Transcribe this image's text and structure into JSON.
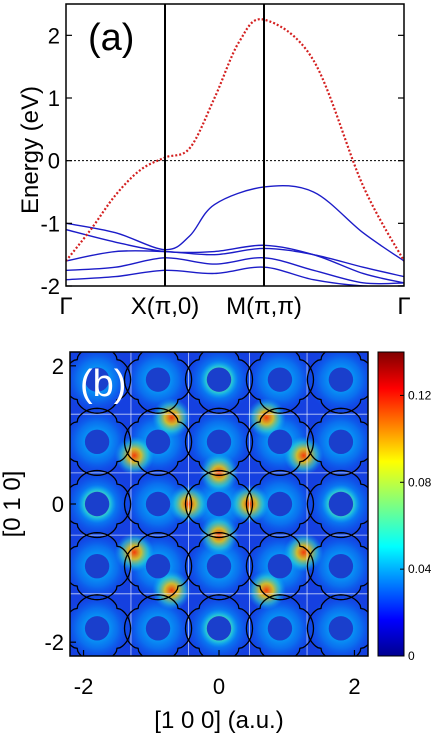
{
  "chart_data": [
    {
      "panel": "(a)",
      "type": "line",
      "ylabel": "Energy (eV)",
      "ylim": [
        -2,
        2.5
      ],
      "yticks": [
        "-2",
        "-1",
        "0",
        "1",
        "2"
      ],
      "xticks": [
        "Γ",
        "X(π,0)",
        "M(π,π)",
        "Γ"
      ],
      "k_path": [
        0,
        1,
        2,
        3.414
      ],
      "fermi_level": 0,
      "highlighted_band": {
        "color": "#d42020",
        "style": "dotted",
        "x": [
          0,
          0.25,
          0.5,
          0.75,
          1.0,
          1.25,
          1.5,
          1.75,
          2.0,
          2.5,
          3.0,
          3.414
        ],
        "y": [
          -1.6,
          -1.1,
          -0.55,
          -0.15,
          0.05,
          0.2,
          1.0,
          1.9,
          2.25,
          1.6,
          -0.4,
          -1.6
        ]
      },
      "bands": [
        {
          "color": "#1c1cc8",
          "x": [
            0,
            0.5,
            1.0,
            1.25,
            1.5,
            2.0,
            2.5,
            3.0,
            3.414
          ],
          "y": [
            -1.0,
            -1.15,
            -1.42,
            -1.2,
            -0.7,
            -0.42,
            -0.5,
            -1.15,
            -1.6
          ]
        },
        {
          "color": "#1c1cc8",
          "x": [
            0,
            0.5,
            1.0,
            1.5,
            2.0,
            2.5,
            3.0,
            3.414
          ],
          "y": [
            -1.1,
            -1.3,
            -1.45,
            -1.45,
            -1.35,
            -1.5,
            -1.8,
            -1.95
          ]
        },
        {
          "color": "#1c1cc8",
          "x": [
            0,
            0.5,
            1.0,
            1.5,
            2.0,
            2.5,
            3.0,
            3.414
          ],
          "y": [
            -1.6,
            -1.45,
            -1.45,
            -1.5,
            -1.4,
            -1.5,
            -1.7,
            -1.85
          ]
        },
        {
          "color": "#1c1cc8",
          "x": [
            0,
            0.5,
            1.0,
            1.5,
            2.0,
            2.5,
            3.0,
            3.414
          ],
          "y": [
            -1.75,
            -1.7,
            -1.55,
            -1.65,
            -1.55,
            -1.75,
            -1.95,
            -1.95
          ]
        },
        {
          "color": "#1c1cc8",
          "x": [
            0,
            0.5,
            1.0,
            1.5,
            2.0,
            2.5,
            3.0,
            3.414
          ],
          "y": [
            -1.9,
            -1.85,
            -1.75,
            -1.8,
            -1.7,
            -1.9,
            -2.0,
            -2.0
          ]
        }
      ]
    },
    {
      "panel": "(b)",
      "type": "heatmap",
      "xlabel": "[1 0 0]  (a.u.)",
      "ylabel": "[0 1 0]",
      "xlim": [
        -2.2,
        2.2
      ],
      "ylim": [
        -2.2,
        2.2
      ],
      "xticks": [
        "-2",
        "0",
        "2"
      ],
      "yticks": [
        "-2",
        "0",
        "2"
      ],
      "grid": true,
      "grid_lines": [
        -1.3,
        -0.45,
        0.45,
        1.3
      ],
      "lattice_sites": [
        -1.8,
        -0.9,
        0,
        0.9,
        1.8
      ],
      "colorbar": {
        "min": 0,
        "max": 0.14,
        "ticks": [
          "0",
          "0.04",
          "0.08",
          "0.12"
        ]
      }
    }
  ]
}
